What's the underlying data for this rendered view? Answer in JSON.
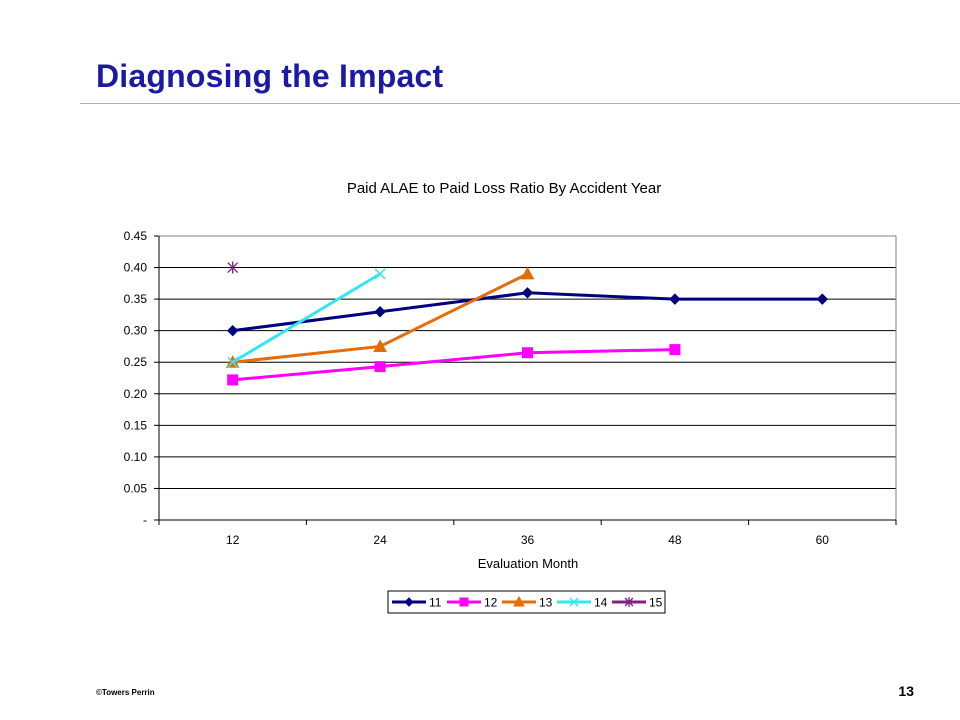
{
  "slide": {
    "title": "Diagnosing the Impact",
    "footer": "©Towers Perrin",
    "page_number": "13"
  },
  "colors": {
    "title": "#1a1aa6",
    "rule": "#8fb8df"
  },
  "chart_data": {
    "type": "line",
    "title": "Paid ALAE to Paid Loss Ratio By Accident Year",
    "xlabel": "Evaluation Month",
    "ylabel": "",
    "categories": [
      "12",
      "24",
      "36",
      "48",
      "60"
    ],
    "ylim": [
      0,
      0.45
    ],
    "yticks": [
      "-",
      "0.05",
      "0.10",
      "0.15",
      "0.20",
      "0.25",
      "0.30",
      "0.35",
      "0.40",
      "0.45"
    ],
    "grid": true,
    "legend_position": "bottom",
    "series": [
      {
        "name": "11",
        "color": "#000080",
        "marker": "diamond",
        "values": [
          0.3,
          0.33,
          0.36,
          0.35,
          0.35
        ]
      },
      {
        "name": "12",
        "color": "#ff00ff",
        "marker": "square",
        "values": [
          0.222,
          0.243,
          0.265,
          0.27,
          null
        ]
      },
      {
        "name": "13",
        "color": "#e46c0a",
        "marker": "triangle",
        "values": [
          0.25,
          0.275,
          0.39,
          null,
          null
        ]
      },
      {
        "name": "14",
        "color": "#33e6f2",
        "marker": "x",
        "values": [
          0.25,
          0.39,
          null,
          null,
          null
        ]
      },
      {
        "name": "15",
        "color": "#7f1f7f",
        "marker": "asterisk",
        "values": [
          0.4,
          null,
          null,
          null,
          null
        ]
      }
    ]
  }
}
